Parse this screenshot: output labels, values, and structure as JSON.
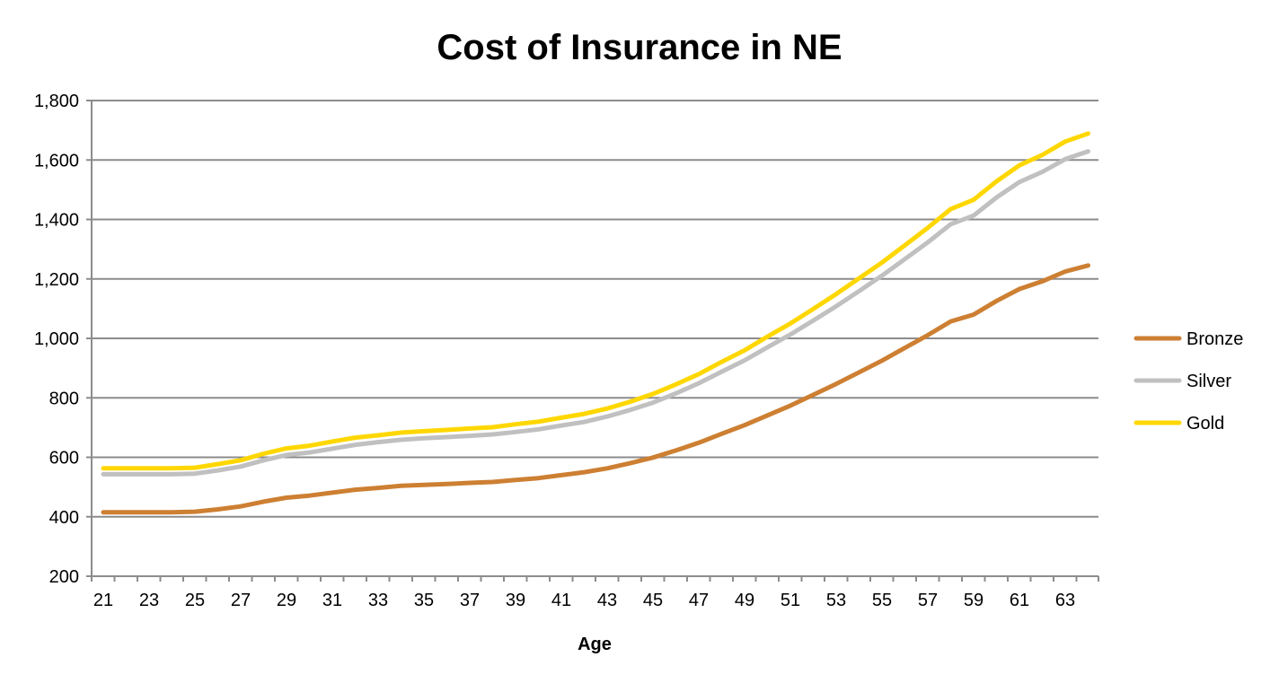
{
  "chart_data": {
    "type": "line",
    "title": "Cost of Insurance in NE",
    "xlabel": "Age",
    "ylabel": "",
    "ylim": [
      200,
      1800
    ],
    "yticks": [
      "200",
      "400",
      "600",
      "800",
      "1,000",
      "1,200",
      "1,400",
      "1,600",
      "1,800"
    ],
    "xtick_labels": [
      "21",
      "23",
      "25",
      "27",
      "29",
      "31",
      "33",
      "35",
      "37",
      "39",
      "41",
      "43",
      "45",
      "47",
      "49",
      "51",
      "53",
      "55",
      "57",
      "59",
      "61",
      "63"
    ],
    "grid": true,
    "legend_position": "right",
    "x": [
      21,
      22,
      23,
      24,
      25,
      26,
      27,
      28,
      29,
      30,
      31,
      32,
      33,
      34,
      35,
      36,
      37,
      38,
      39,
      40,
      41,
      42,
      43,
      44,
      45,
      46,
      47,
      48,
      49,
      50,
      51,
      52,
      53,
      54,
      55,
      56,
      57,
      58,
      59,
      60,
      61,
      62,
      63,
      64
    ],
    "series": [
      {
        "name": "Bronze",
        "color": "#CD7F32",
        "values": [
          415,
          415,
          415,
          415,
          417,
          425,
          435,
          451,
          464,
          471,
          481,
          491,
          497,
          504,
          507,
          510,
          514,
          517,
          524,
          530,
          540,
          550,
          563,
          580,
          599,
          623,
          649,
          679,
          708,
          741,
          774,
          810,
          847,
          886,
          925,
          968,
          1011,
          1057,
          1080,
          1126,
          1166,
          1192,
          1225,
          1245
        ]
      },
      {
        "name": "Silver",
        "color": "#C0C0C0",
        "values": [
          543,
          543,
          543,
          543,
          545,
          556,
          569,
          590,
          608,
          616,
          629,
          642,
          651,
          659,
          664,
          668,
          672,
          677,
          685,
          694,
          707,
          719,
          737,
          759,
          784,
          815,
          849,
          888,
          926,
          970,
          1013,
          1060,
          1108,
          1159,
          1211,
          1267,
          1323,
          1384,
          1413,
          1474,
          1526,
          1560,
          1603,
          1629
        ]
      },
      {
        "name": "Gold",
        "color": "#FFD700",
        "values": [
          563,
          563,
          563,
          563,
          565,
          577,
          590,
          612,
          630,
          639,
          653,
          666,
          674,
          683,
          688,
          692,
          697,
          701,
          711,
          720,
          733,
          746,
          764,
          787,
          813,
          845,
          880,
          921,
          960,
          1006,
          1050,
          1099,
          1149,
          1202,
          1255,
          1313,
          1372,
          1435,
          1466,
          1528,
          1582,
          1617,
          1662,
          1689
        ]
      }
    ]
  }
}
